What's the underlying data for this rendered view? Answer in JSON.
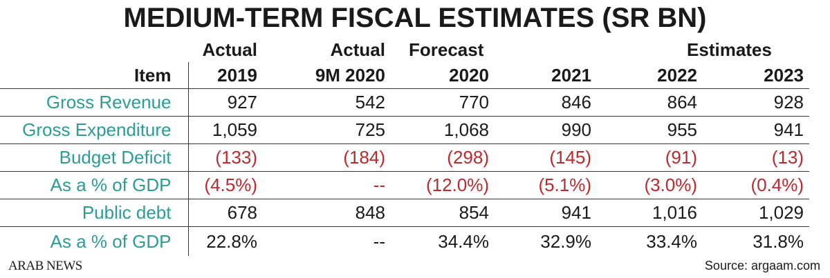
{
  "title": "MEDIUM-TERM FISCAL ESTIMATES (SR BN)",
  "group_headers": [
    "Actual",
    "Actual",
    "Forecast",
    "Estimates"
  ],
  "column_headers": [
    "Item",
    "2019",
    "9M 2020",
    "2020",
    "2021",
    "2022",
    "2023"
  ],
  "rows": [
    {
      "label": "Gross Revenue",
      "values": [
        "927",
        "542",
        "770",
        "846",
        "864",
        "928"
      ]
    },
    {
      "label": "Gross Expenditure",
      "values": [
        "1,059",
        "725",
        "1,068",
        "990",
        "955",
        "941"
      ]
    },
    {
      "label": "Budget Deficit",
      "values": [
        "(133)",
        "(184)",
        "(298)",
        "(145)",
        "(91)",
        "(13)"
      ]
    },
    {
      "label": "As a % of GDP",
      "values": [
        "(4.5%)",
        "--",
        "(12.0%)",
        "(5.1%)",
        "(3.0%)",
        "(0.4%)"
      ]
    },
    {
      "label": "Public debt",
      "values": [
        "678",
        "848",
        "854",
        "941",
        "1,016",
        "1,029"
      ]
    },
    {
      "label": "As a % of GDP",
      "values": [
        "22.8%",
        "--",
        "34.4%",
        "32.9%",
        "33.4%",
        "31.8%"
      ]
    }
  ],
  "colors": {
    "label": "#2c9c96",
    "negative": "#c0282d",
    "text": "#1a1a1a"
  },
  "logo": "ARAB NEWS",
  "source": "Source: argaam.com"
}
